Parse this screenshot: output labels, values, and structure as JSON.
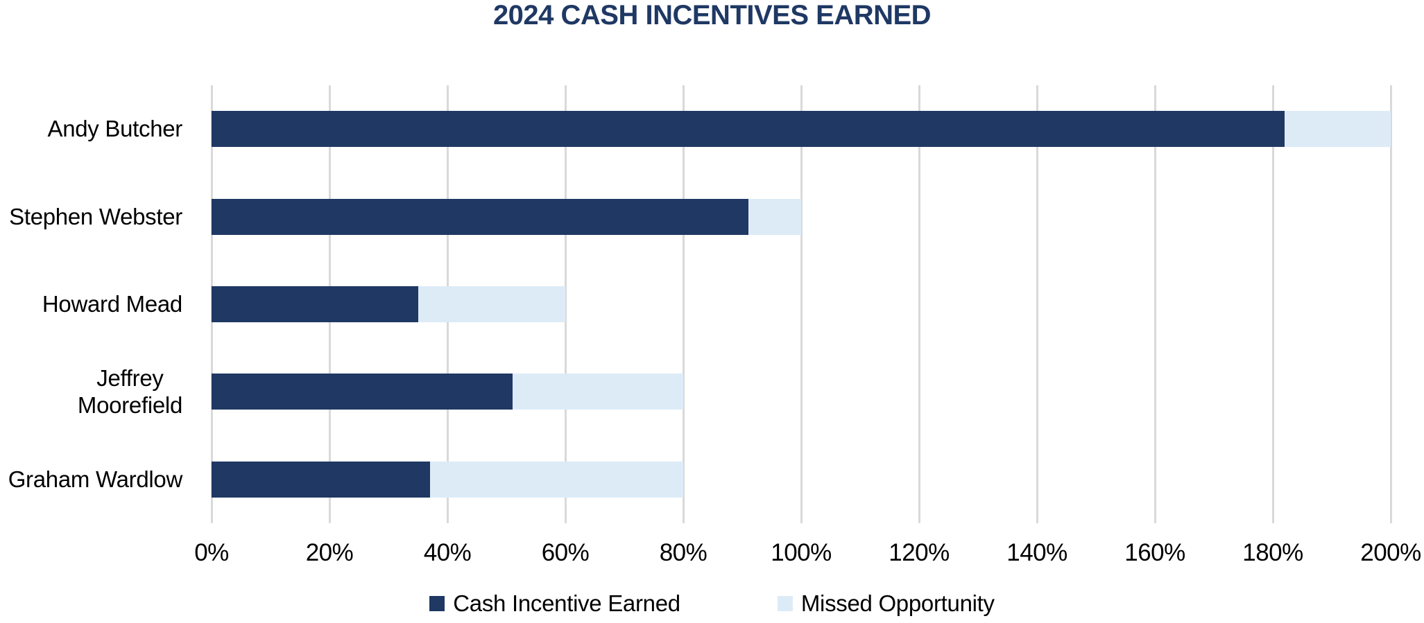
{
  "title": "2024 CASH INCENTIVES EARNED",
  "colors": {
    "title": "#1F3864",
    "earned": "#1F3864",
    "missed": "#DDEBF7",
    "gridline": "#D9D9D9",
    "text": "#000000",
    "background": "#FFFFFF"
  },
  "chart_data": {
    "type": "bar",
    "orientation": "horizontal",
    "stacked": true,
    "title": "2024 CASH INCENTIVES EARNED",
    "categories": [
      "Andy Butcher",
      "Stephen Webster",
      "Howard Mead",
      "Jeffrey Moorefield",
      "Graham Wardlow"
    ],
    "category_label_lines": [
      [
        "Andy Butcher"
      ],
      [
        "Stephen Webster"
      ],
      [
        "Howard Mead"
      ],
      [
        "Jeffrey",
        "Moorefield"
      ],
      [
        "Graham Wardlow"
      ]
    ],
    "series": [
      {
        "name": "Cash Incentive Earned",
        "color": "#1F3864",
        "values": [
          182,
          91,
          35,
          51,
          37
        ]
      },
      {
        "name": "Missed Opportunity",
        "color": "#DDEBF7",
        "values": [
          18,
          9,
          25,
          29,
          43
        ]
      }
    ],
    "totals": [
      200,
      100,
      60,
      80,
      80
    ],
    "xlabel": "",
    "ylabel": "",
    "xlim": [
      0,
      200
    ],
    "x_tick_step": 20,
    "x_ticks": [
      "0%",
      "20%",
      "40%",
      "60%",
      "80%",
      "100%",
      "120%",
      "140%",
      "160%",
      "180%",
      "200%"
    ],
    "grid": "vertical",
    "legend_position": "bottom"
  }
}
